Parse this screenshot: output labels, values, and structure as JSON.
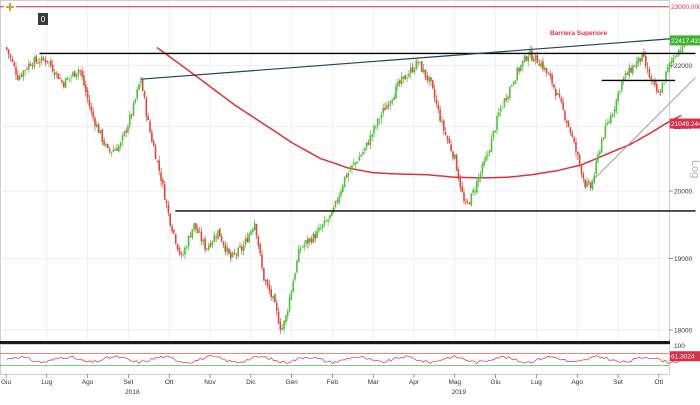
{
  "chart_data": {
    "type": "candlestick",
    "scale": "log",
    "grid": true,
    "y_ticks": [
      "18000",
      "19000",
      "20000",
      "21000",
      "22000"
    ],
    "ylim": [
      17850,
      23100
    ],
    "x_tick_labels": [
      "Giu",
      "Lug",
      "Ago",
      "Set",
      "Ott",
      "Nov",
      "Dic",
      "Gen",
      "Feb",
      "Mar",
      "Apr",
      "Mag",
      "Giu",
      "Lug",
      "Ago",
      "Set",
      "Ott"
    ],
    "x_tick_months": [
      0,
      1,
      2,
      3,
      4,
      5,
      6,
      7,
      8,
      9,
      10,
      11,
      12,
      13,
      14,
      15,
      16
    ],
    "year_labels": [
      {
        "label": "2018",
        "month": 3
      },
      {
        "label": "2019",
        "month": 11
      }
    ],
    "price_labels": {
      "top": "23000.0000",
      "last": "22417.4319",
      "ma": "21049.2441",
      "rsi": "61.3024"
    },
    "annotation": "Barriera Superiore",
    "axis_word": "Log",
    "toolbar_badge": "0",
    "price_anchors": [
      [
        0.0,
        22300
      ],
      [
        0.3,
        21800
      ],
      [
        0.6,
        22050
      ],
      [
        1.0,
        22100
      ],
      [
        1.4,
        21700
      ],
      [
        1.8,
        21950
      ],
      [
        2.1,
        21200
      ],
      [
        2.5,
        20600
      ],
      [
        2.8,
        20700
      ],
      [
        3.1,
        21250
      ],
      [
        3.3,
        21780
      ],
      [
        3.5,
        21000
      ],
      [
        3.8,
        20200
      ],
      [
        4.0,
        19600
      ],
      [
        4.3,
        19000
      ],
      [
        4.6,
        19500
      ],
      [
        4.9,
        19150
      ],
      [
        5.2,
        19400
      ],
      [
        5.5,
        19000
      ],
      [
        5.8,
        19150
      ],
      [
        6.1,
        19550
      ],
      [
        6.3,
        18750
      ],
      [
        6.55,
        18400
      ],
      [
        6.75,
        18000
      ],
      [
        6.85,
        18150
      ],
      [
        7.2,
        19150
      ],
      [
        7.6,
        19350
      ],
      [
        8.0,
        19650
      ],
      [
        8.3,
        20200
      ],
      [
        8.8,
        20650
      ],
      [
        9.2,
        21200
      ],
      [
        9.6,
        21650
      ],
      [
        9.9,
        21900
      ],
      [
        10.1,
        22050
      ],
      [
        10.4,
        21700
      ],
      [
        10.7,
        21000
      ],
      [
        11.0,
        20500
      ],
      [
        11.25,
        19750
      ],
      [
        11.4,
        19900
      ],
      [
        11.8,
        20550
      ],
      [
        12.1,
        21250
      ],
      [
        12.5,
        21850
      ],
      [
        12.8,
        22200
      ],
      [
        13.1,
        22050
      ],
      [
        13.4,
        21700
      ],
      [
        13.8,
        21000
      ],
      [
        14.2,
        20100
      ],
      [
        14.35,
        20050
      ],
      [
        14.6,
        20800
      ],
      [
        14.9,
        21300
      ],
      [
        15.1,
        21750
      ],
      [
        15.4,
        22000
      ],
      [
        15.6,
        22150
      ],
      [
        15.8,
        21750
      ],
      [
        16.0,
        21500
      ],
      [
        16.2,
        21900
      ],
      [
        16.4,
        22200
      ],
      [
        16.55,
        22300
      ],
      [
        16.7,
        22420
      ]
    ],
    "overlays": {
      "ma_anchors": [
        [
          3.7,
          22300
        ],
        [
          4.2,
          22050
        ],
        [
          5.0,
          21650
        ],
        [
          5.6,
          21350
        ],
        [
          6.3,
          21050
        ],
        [
          7.0,
          20750
        ],
        [
          7.7,
          20500
        ],
        [
          8.4,
          20350
        ],
        [
          9.0,
          20280
        ],
        [
          9.6,
          20260
        ],
        [
          10.3,
          20250
        ],
        [
          11.0,
          20210
        ],
        [
          11.7,
          20200
        ],
        [
          12.3,
          20210
        ],
        [
          12.9,
          20250
        ],
        [
          13.5,
          20310
        ],
        [
          14.1,
          20400
        ],
        [
          14.7,
          20560
        ],
        [
          15.3,
          20720
        ],
        [
          15.8,
          20900
        ],
        [
          16.2,
          21060
        ],
        [
          16.55,
          21180
        ]
      ],
      "top_barrier": 23000,
      "horizontal_levels": [
        {
          "level": 22200,
          "from": 0.82,
          "to": 16.9
        },
        {
          "level": 19700,
          "from": 4.15,
          "to": 16.9
        },
        {
          "level": 21750,
          "from": 14.6,
          "to": 16.4
        }
      ],
      "trendlines": [
        {
          "from": [
            3.3,
            21770
          ],
          "to": [
            16.9,
            22480
          ]
        },
        {
          "from": [
            14.2,
            20050
          ],
          "to": [
            16.9,
            21800
          ]
        }
      ]
    },
    "rsi": {
      "ylim": [
        0,
        100
      ],
      "levels": [
        30,
        70
      ],
      "upper_bound": 100
    },
    "colors": {
      "up": "#4fbf3a",
      "down": "#d94a3c",
      "ma": "#e0303a",
      "trend": "#2b3f57",
      "levels": "#000000",
      "support": "#888888",
      "top_line": "#d9304a",
      "grid": "#e6e6e6",
      "label_green": "#3cb22e",
      "label_red": "#d9304a"
    }
  }
}
